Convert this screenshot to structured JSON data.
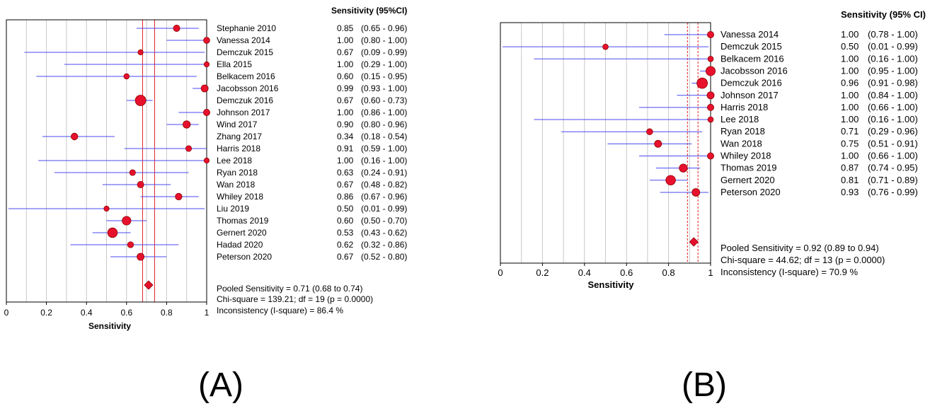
{
  "panels": [
    {
      "label": "(A)",
      "header": "Sensitivity (95%CI)",
      "xlabel": "Sensitivity",
      "ticks": [
        "0",
        "0.2",
        "0.4",
        "0.6",
        "0.8",
        "1"
      ],
      "summary": [
        "Pooled Sensitivity = 0.71 (0.68 to 0.74)",
        "Chi-square = 139.21; df =  19 (p = 0.0000)",
        "Inconsistency (I-square) = 86.4 %"
      ]
    },
    {
      "label": "(B)",
      "header": "Sensitivity (95% CI)",
      "xlabel": "Sensitivity",
      "ticks": [
        "0",
        "0.2",
        "0.4",
        "0.6",
        "0.8",
        "1"
      ],
      "summary": [
        "Pooled Sensitivity = 0.92 (0.89 to 0.94)",
        "Chi-square = 44.62; df =  13 (p = 0.0000)",
        "Inconsistency (I-square) = 70.9 %"
      ]
    }
  ],
  "colors": {
    "point": "#e8112d",
    "ci_line": "#4a4af0",
    "pooled_line": "#e02020",
    "grid": "#c8c8c8",
    "frame": "#000000"
  },
  "chart_data": [
    {
      "type": "forest",
      "xlim": [
        0,
        1
      ],
      "grid": true,
      "studies": [
        {
          "name": "Stephanie 2010",
          "value": 0.85,
          "lo": 0.65,
          "hi": 0.96,
          "ci_text": "(0.65 - 0.96)",
          "weight": 0.35
        },
        {
          "name": "Vanessa 2014",
          "value": 1.0,
          "lo": 0.8,
          "hi": 1.0,
          "ci_text": "(0.80 - 1.00)",
          "weight": 0.3
        },
        {
          "name": "Demczuk 2015",
          "value": 0.67,
          "lo": 0.09,
          "hi": 0.99,
          "ci_text": "(0.09 - 0.99)",
          "weight": 0.15
        },
        {
          "name": "Ella 2015",
          "value": 1.0,
          "lo": 0.29,
          "hi": 1.0,
          "ci_text": "(0.29 - 1.00)",
          "weight": 0.15
        },
        {
          "name": "Belkacem 2016",
          "value": 0.6,
          "lo": 0.15,
          "hi": 0.95,
          "ci_text": "(0.15 - 0.95)",
          "weight": 0.18
        },
        {
          "name": "Jacobsson 2016",
          "value": 0.99,
          "lo": 0.93,
          "hi": 1.0,
          "ci_text": "(0.93 - 1.00)",
          "weight": 0.45
        },
        {
          "name": "Demczuk 2016",
          "value": 0.67,
          "lo": 0.6,
          "hi": 0.73,
          "ci_text": "(0.60 - 0.73)",
          "weight": 1.0
        },
        {
          "name": "Johnson 2017",
          "value": 1.0,
          "lo": 0.86,
          "hi": 1.0,
          "ci_text": "(0.86 - 1.00)",
          "weight": 0.35
        },
        {
          "name": "Wind 2017",
          "value": 0.9,
          "lo": 0.8,
          "hi": 0.96,
          "ci_text": "(0.80 - 0.96)",
          "weight": 0.5
        },
        {
          "name": "Zhang 2017",
          "value": 0.34,
          "lo": 0.18,
          "hi": 0.54,
          "ci_text": "(0.18 - 0.54)",
          "weight": 0.4
        },
        {
          "name": "Harris 2018",
          "value": 0.91,
          "lo": 0.59,
          "hi": 1.0,
          "ci_text": "(0.59 - 1.00)",
          "weight": 0.25
        },
        {
          "name": "Lee 2018",
          "value": 1.0,
          "lo": 0.16,
          "hi": 1.0,
          "ci_text": "(0.16 - 1.00)",
          "weight": 0.15
        },
        {
          "name": "Ryan 2018",
          "value": 0.63,
          "lo": 0.24,
          "hi": 0.91,
          "ci_text": "(0.24 - 0.91)",
          "weight": 0.25
        },
        {
          "name": "Wan 2018",
          "value": 0.67,
          "lo": 0.48,
          "hi": 0.82,
          "ci_text": "(0.48 - 0.82)",
          "weight": 0.35
        },
        {
          "name": "Whiley 2018",
          "value": 0.86,
          "lo": 0.67,
          "hi": 0.96,
          "ci_text": "(0.67 - 0.96)",
          "weight": 0.38
        },
        {
          "name": "Liu 2019",
          "value": 0.5,
          "lo": 0.01,
          "hi": 0.99,
          "ci_text": "(0.01 - 0.99)",
          "weight": 0.15
        },
        {
          "name": "Thomas 2019",
          "value": 0.6,
          "lo": 0.5,
          "hi": 0.7,
          "ci_text": "(0.50 - 0.70)",
          "weight": 0.7
        },
        {
          "name": "Gernert 2020",
          "value": 0.53,
          "lo": 0.43,
          "hi": 0.62,
          "ci_text": "(0.43 - 0.62)",
          "weight": 0.85
        },
        {
          "name": "Hadad 2020",
          "value": 0.62,
          "lo": 0.32,
          "hi": 0.86,
          "ci_text": "(0.32 - 0.86)",
          "weight": 0.28
        },
        {
          "name": "Peterson 2020",
          "value": 0.67,
          "lo": 0.52,
          "hi": 0.8,
          "ci_text": "(0.52 - 0.80)",
          "weight": 0.45
        }
      ],
      "pooled": {
        "value": 0.71,
        "lo": 0.68,
        "hi": 0.74
      }
    },
    {
      "type": "forest",
      "xlim": [
        0,
        1
      ],
      "grid": true,
      "studies": [
        {
          "name": "Vanessa 2014",
          "value": 1.0,
          "lo": 0.78,
          "hi": 1.0,
          "ci_text": "(0.78 - 1.00)",
          "weight": 0.35
        },
        {
          "name": "Demczuk 2015",
          "value": 0.5,
          "lo": 0.01,
          "hi": 0.99,
          "ci_text": "(0.01 - 0.99)",
          "weight": 0.2
        },
        {
          "name": "Belkacem 2016",
          "value": 1.0,
          "lo": 0.16,
          "hi": 1.0,
          "ci_text": "(0.16 - 1.00)",
          "weight": 0.2
        },
        {
          "name": "Jacobsson 2016",
          "value": 1.0,
          "lo": 0.95,
          "hi": 1.0,
          "ci_text": "(0.95 - 1.00)",
          "weight": 0.8
        },
        {
          "name": "Demczuk 2016",
          "value": 0.96,
          "lo": 0.91,
          "hi": 0.98,
          "ci_text": "(0.91 - 0.98)",
          "weight": 1.0
        },
        {
          "name": "Johnson 2017",
          "value": 1.0,
          "lo": 0.84,
          "hi": 1.0,
          "ci_text": "(0.84 - 1.00)",
          "weight": 0.45
        },
        {
          "name": "Harris 2018",
          "value": 1.0,
          "lo": 0.66,
          "hi": 1.0,
          "ci_text": "(0.66 - 1.00)",
          "weight": 0.35
        },
        {
          "name": "Lee 2018",
          "value": 1.0,
          "lo": 0.16,
          "hi": 1.0,
          "ci_text": "(0.16 - 1.00)",
          "weight": 0.2
        },
        {
          "name": "Ryan 2018",
          "value": 0.71,
          "lo": 0.29,
          "hi": 0.96,
          "ci_text": "(0.29 - 0.96)",
          "weight": 0.3
        },
        {
          "name": "Wan 2018",
          "value": 0.75,
          "lo": 0.51,
          "hi": 0.91,
          "ci_text": "(0.51 - 0.91)",
          "weight": 0.45
        },
        {
          "name": "Whiley 2018",
          "value": 1.0,
          "lo": 0.66,
          "hi": 1.0,
          "ci_text": "(0.66 - 1.00)",
          "weight": 0.35
        },
        {
          "name": "Thomas 2019",
          "value": 0.87,
          "lo": 0.74,
          "hi": 0.95,
          "ci_text": "(0.74 - 0.95)",
          "weight": 0.6
        },
        {
          "name": "Gernert 2020",
          "value": 0.81,
          "lo": 0.71,
          "hi": 0.89,
          "ci_text": "(0.71 - 0.89)",
          "weight": 0.85
        },
        {
          "name": "Peterson 2020",
          "value": 0.93,
          "lo": 0.76,
          "hi": 0.99,
          "ci_text": "(0.76 - 0.99)",
          "weight": 0.55
        }
      ],
      "pooled": {
        "value": 0.92,
        "lo": 0.89,
        "hi": 0.94
      }
    }
  ]
}
